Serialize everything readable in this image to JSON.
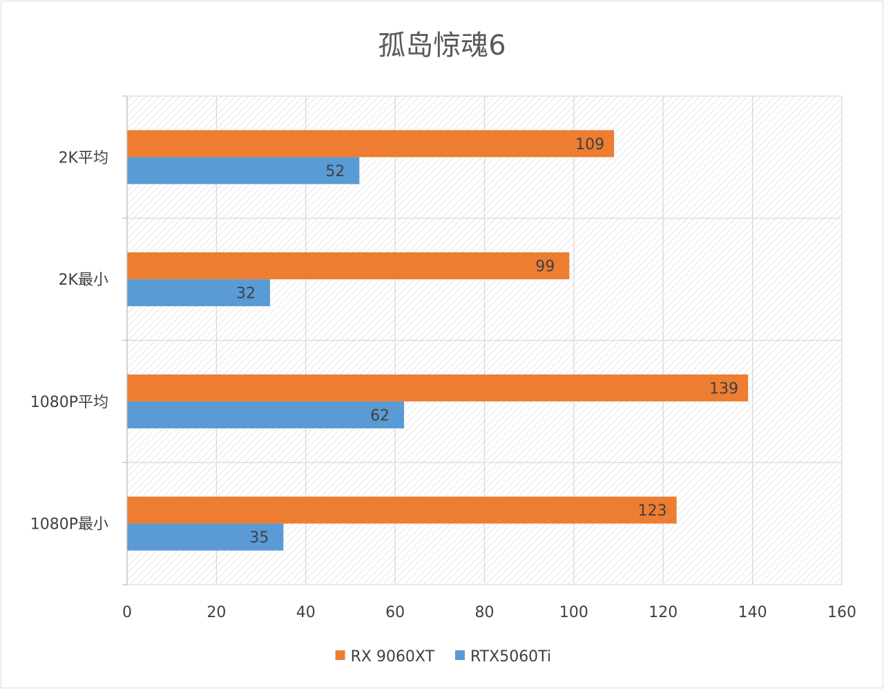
{
  "chart_data": {
    "type": "bar",
    "orientation": "horizontal",
    "title": "孤岛惊魂6",
    "xlabel": "",
    "ylabel": "",
    "categories": [
      "2K平均",
      "2K最小",
      "1080P平均",
      "1080P最小"
    ],
    "series": [
      {
        "name": "RX 9060XT",
        "color": "#ED7D31",
        "values": [
          109,
          99,
          139,
          123
        ]
      },
      {
        "name": "RTX5060Ti",
        "color": "#5B9BD5",
        "values": [
          52,
          32,
          62,
          35
        ]
      }
    ],
    "xlim": [
      0,
      160
    ],
    "xticks": [
      0,
      20,
      40,
      60,
      80,
      100,
      120,
      140,
      160
    ],
    "grid": true,
    "data_labels": true,
    "legend": "bottom"
  }
}
